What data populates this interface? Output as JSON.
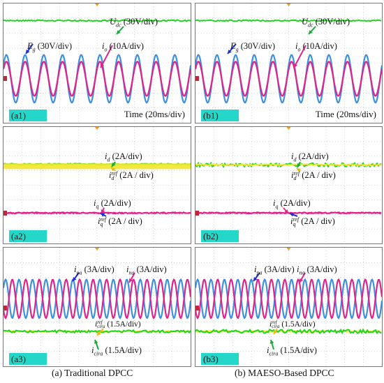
{
  "captions": {
    "left": "(a) Traditional DPCC",
    "right": "(b) MAESO-Based DPCC"
  },
  "panels": {
    "a1": {
      "tag": "(a1)",
      "udc_label": "U",
      "udc_sub": "dc",
      "udc_div": " (30V/div)",
      "eg_label": "E",
      "eg_sub": "g",
      "eg_div": " (30V/div)",
      "io_label": "i",
      "io_sub": "o",
      "io_div": " (10A/div)",
      "time": "Time (20ms/div)"
    },
    "b1": {
      "tag": "(b1)",
      "udc_label": "U",
      "udc_sub": "dc",
      "udc_div": " (30V/div)",
      "eg_label": "E",
      "eg_sub": "g",
      "eg_div": " (30V/div)",
      "io_label": "i",
      "io_sub": "o",
      "io_div": " (10A/div)",
      "time": "Time (20ms/div)"
    },
    "a2": {
      "tag": "(a2)",
      "id_label": "i",
      "id_sub": "d",
      "id_div": " (2A/div)",
      "idref_label": "i",
      "idref_sup": "ref",
      "idref_sub": "d",
      "idref_div": " (2A / div)",
      "iq_label": "i",
      "iq_sub": "q",
      "iq_div": " (2A/div)",
      "iqref_label": "i",
      "iqref_sup": "ref",
      "iqref_sub": "q",
      "iqref_div": " (2A / div)"
    },
    "b2": {
      "tag": "(b2)",
      "id_label": "i",
      "id_sub": "d",
      "id_div": " (2A/div)",
      "idref_label": "i",
      "idref_sup": "ref",
      "idref_sub": "d",
      "idref_div": " (2A / div)",
      "iq_label": "i",
      "iq_sub": "q",
      "iq_div": " (2A/div)",
      "iqref_label": "i",
      "iqref_sup": "ref",
      "iqref_sub": "q",
      "iqref_div": " (2A / div)"
    },
    "a3": {
      "tag": "(a3)",
      "ipa_label": "i",
      "ipa_sub": "pa",
      "ipa_div": " (3A/div)",
      "ina_label": "i",
      "ina_sub": "na",
      "ina_div": " (3A/div)",
      "icirr_label": "i",
      "icirr_sup": "ref",
      "icirr_sub": "cira",
      "icirr_div": " (1.5A/div)",
      "icira_label": "i",
      "icira_sub": "cira",
      "icira_div": " (1.5A/div)"
    },
    "b3": {
      "tag": "(b3)",
      "ipa_label": "i",
      "ipa_sub": "pa",
      "ipa_div": " (3A/div)",
      "ina_label": "i",
      "ina_sub": "na",
      "ina_div": " (3A/div)",
      "icirr_label": "i",
      "icirr_sup": "ref",
      "icirr_sub": "cira",
      "icirr_div": " (1.5A/div)",
      "icira_label": "i",
      "icira_sub": "cira",
      "icira_div": " (1.5A/div)"
    }
  },
  "colors": {
    "green": "#1fd51f",
    "blue": "#3f8fe0",
    "magenta": "#e0238a",
    "yellow": "#f3e628",
    "grid": "#b9b9b9",
    "arrow_green": "#1aa83a",
    "arrow_blue": "#1c2fd6",
    "arrow_magenta": "#e0238a",
    "arrow_yellow": "#f2b80d"
  },
  "chart_data": [
    {
      "id": "a1",
      "type": "line",
      "series": [
        {
          "name": "Udc",
          "kind": "dc",
          "level_div": 2.85
        },
        {
          "name": "Eg",
          "kind": "sine",
          "amplitude_div": 1.6,
          "offset_div": -1.05,
          "period_div": 1.0
        },
        {
          "name": "io",
          "kind": "sine",
          "amplitude_div": 1.15,
          "offset_div": -1.05,
          "period_div": 1.0
        }
      ]
    },
    {
      "id": "b1",
      "type": "line",
      "series": [
        {
          "name": "Udc",
          "kind": "dc",
          "level_div": 2.85
        },
        {
          "name": "Eg",
          "kind": "sine",
          "amplitude_div": 1.6,
          "offset_div": -1.05,
          "period_div": 1.0
        },
        {
          "name": "io",
          "kind": "sine",
          "amplitude_div": 1.15,
          "offset_div": -1.05,
          "period_div": 1.0
        }
      ]
    },
    {
      "id": "a2",
      "type": "line",
      "series": [
        {
          "name": "id",
          "kind": "dc",
          "level_div": 1.45,
          "ripple": "low"
        },
        {
          "name": "id_ref",
          "kind": "band",
          "level_div": 1.3
        },
        {
          "name": "iq",
          "kind": "dc",
          "level_div": -1.9,
          "ripple": "low"
        },
        {
          "name": "iq_ref",
          "kind": "dc",
          "level_div": -1.9
        }
      ]
    },
    {
      "id": "b2",
      "type": "line",
      "series": [
        {
          "name": "id",
          "kind": "dc",
          "level_div": 1.4,
          "ripple": "high"
        },
        {
          "name": "id_ref",
          "kind": "dc",
          "level_div": 1.4
        },
        {
          "name": "iq",
          "kind": "dc",
          "level_div": -1.9,
          "ripple": "low"
        },
        {
          "name": "iq_ref",
          "kind": "dc",
          "level_div": -1.9
        }
      ]
    },
    {
      "id": "a3",
      "type": "line",
      "series": [
        {
          "name": "ipa",
          "kind": "sine",
          "amplitude_div": 1.3,
          "offset_div": 0.55,
          "period_div": 0.72
        },
        {
          "name": "ina",
          "kind": "sine",
          "amplitude_div": 1.3,
          "offset_div": 0.55,
          "period_div": 0.72,
          "phase": 3.14159
        },
        {
          "name": "icira_ref",
          "kind": "dc",
          "level_div": -1.65
        },
        {
          "name": "icira",
          "kind": "dc",
          "level_div": -1.65,
          "ripple": "medium"
        }
      ]
    },
    {
      "id": "b3",
      "type": "line",
      "series": [
        {
          "name": "ipa",
          "kind": "sine",
          "amplitude_div": 1.3,
          "offset_div": 0.55,
          "period_div": 0.72
        },
        {
          "name": "ina",
          "kind": "sine",
          "amplitude_div": 1.3,
          "offset_div": 0.55,
          "period_div": 0.72,
          "phase": 3.14159
        },
        {
          "name": "icira_ref",
          "kind": "dc",
          "level_div": -1.65
        },
        {
          "name": "icira",
          "kind": "dc",
          "level_div": -1.65,
          "ripple": "high"
        }
      ]
    }
  ]
}
